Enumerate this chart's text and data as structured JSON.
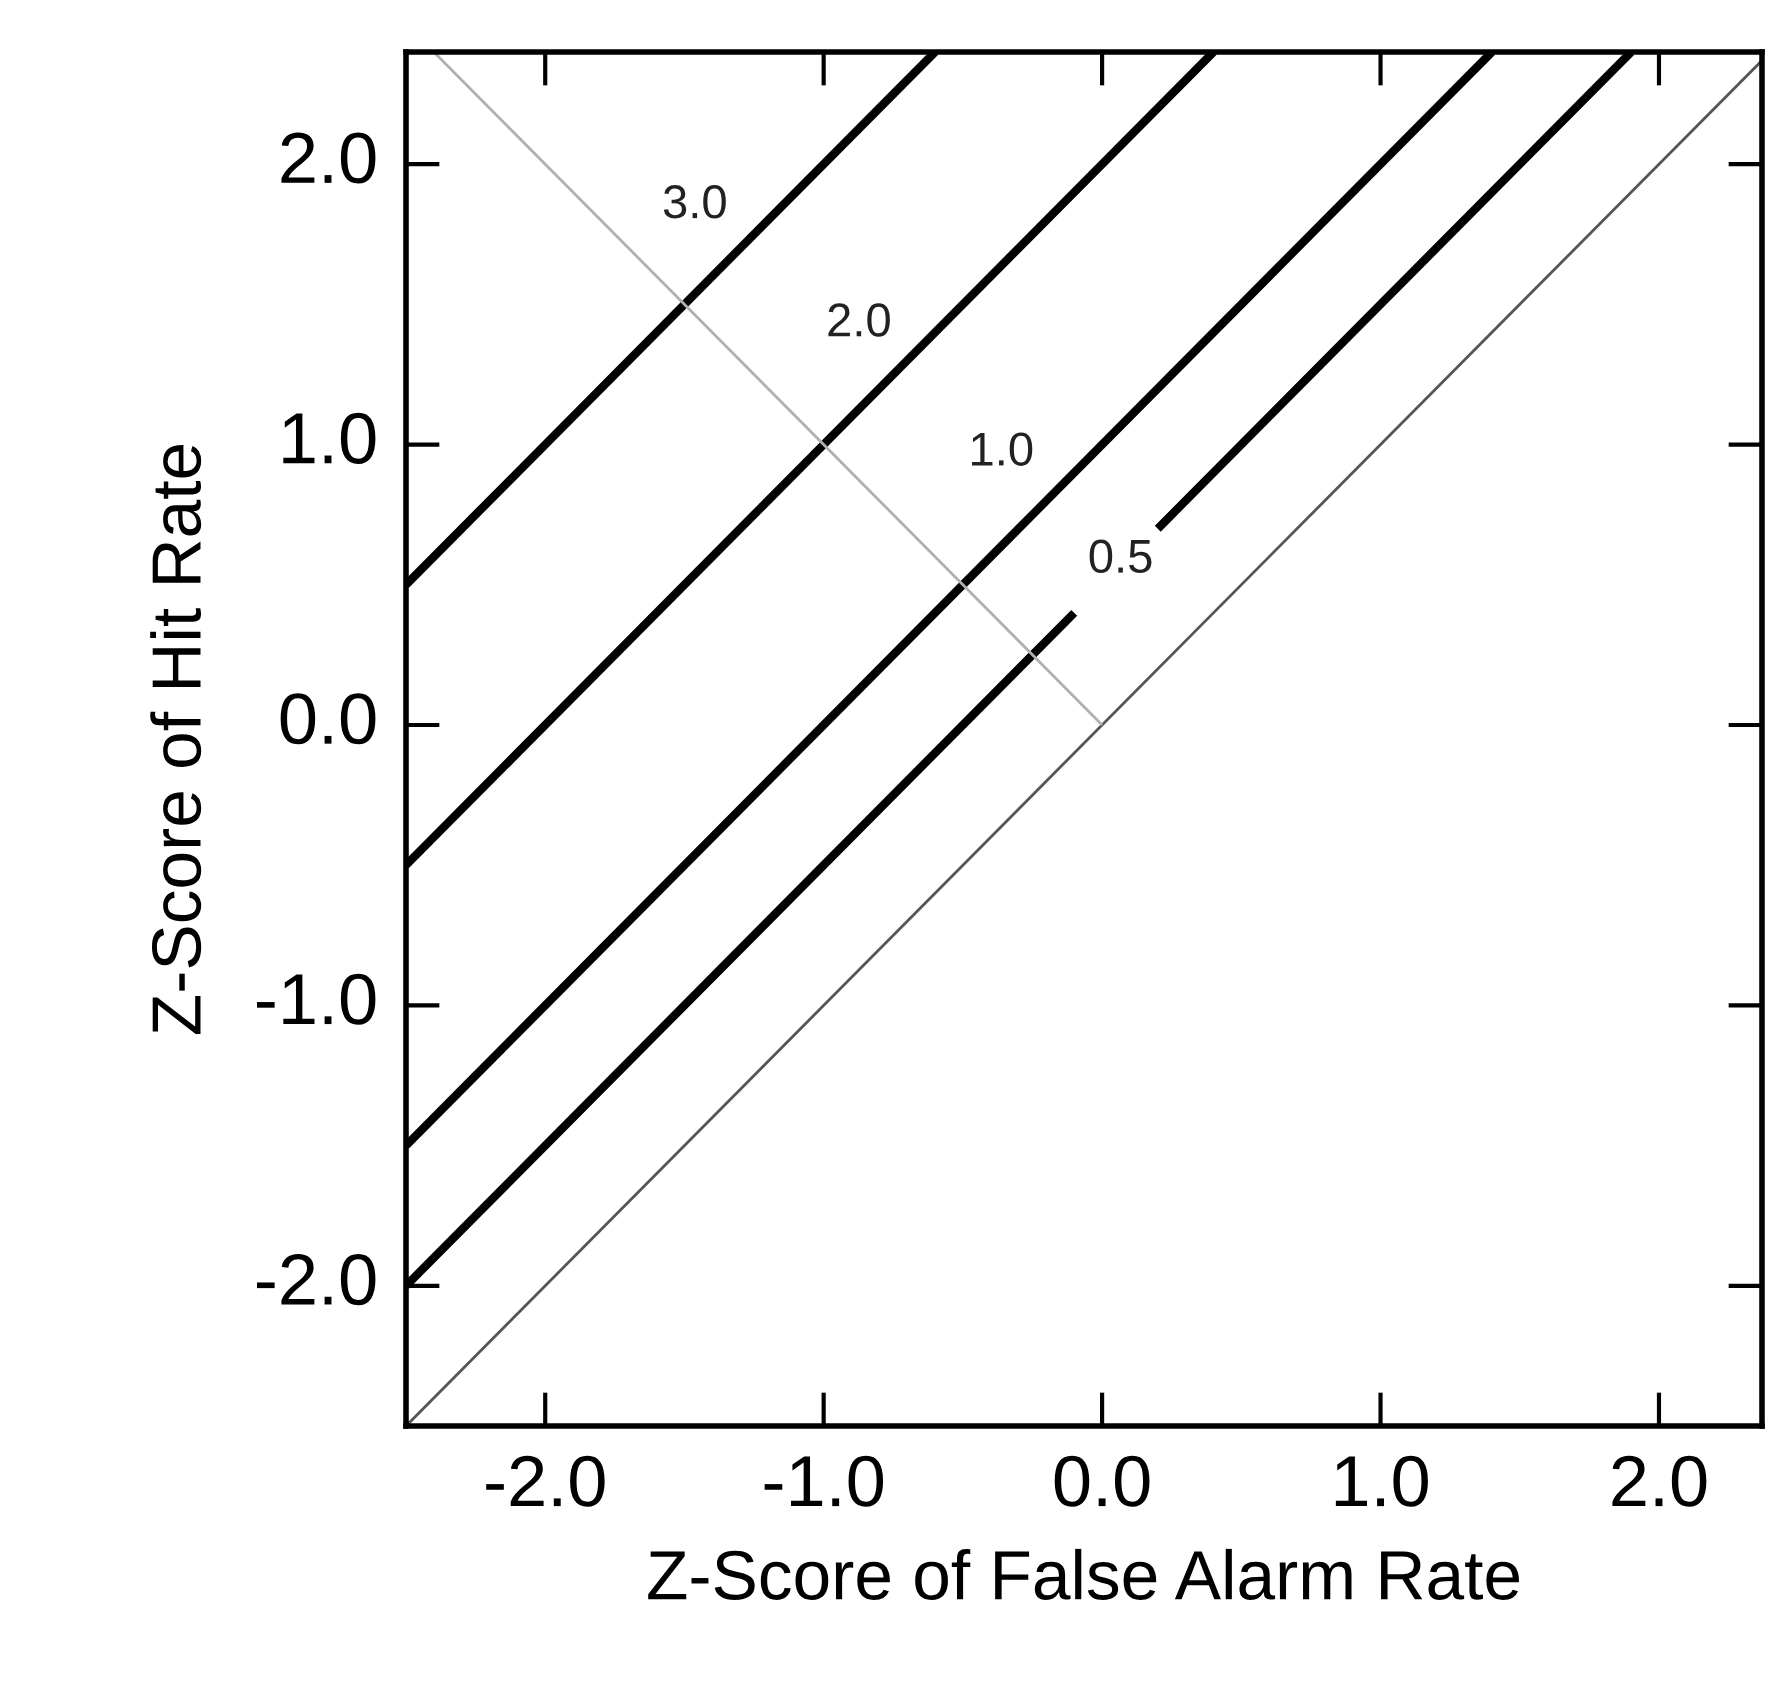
{
  "chart_data": {
    "type": "line",
    "xlabel": "Z-Score of False Alarm Rate",
    "ylabel": "Z-Score of Hit Rate",
    "series": [
      {
        "color": "#000000",
        "x": [
          -2.5,
          -0.6
        ],
        "values": [
          0.5,
          2.4
        ]
      },
      {
        "color": "#000000",
        "x": [
          -2.5,
          0.4
        ],
        "values": [
          -0.5,
          2.4
        ]
      },
      {
        "color": "#000000",
        "x": [
          -2.5,
          1.4
        ],
        "values": [
          -1.5,
          2.4
        ]
      },
      {
        "color": "#000000",
        "x": [
          -2.5,
          -0.1,
          0.05,
          0.2,
          1.9
        ],
        "values": [
          -2.0,
          0.4,
          null,
          0.7,
          2.4
        ]
      },
      {
        "color": "#555555",
        "x": [
          -2.5,
          2.37
        ],
        "values": [
          -2.5,
          2.37
        ]
      },
      {
        "color": "#b0b0b0",
        "x": [
          -2.4,
          0.0
        ],
        "values": [
          2.4,
          0.0
        ]
      }
    ],
    "annotations": [
      "3.0",
      "2.0",
      "1.0",
      "0.5"
    ],
    "xlim": [
      -2.5,
      2.37
    ],
    "ylim": [
      -2.5,
      2.4
    ],
    "xticks": [
      {
        "value": -2.0,
        "label": "-2.0"
      },
      {
        "value": -1.0,
        "label": "-1.0"
      },
      {
        "value": 0.0,
        "label": "0.0"
      },
      {
        "value": 1.0,
        "label": "1.0"
      },
      {
        "value": 2.0,
        "label": "2.0"
      }
    ],
    "yticks": [
      {
        "value": -2.0,
        "label": "-2.0"
      },
      {
        "value": -1.0,
        "label": "-1.0"
      },
      {
        "value": 0.0,
        "label": "0.0"
      },
      {
        "value": 1.0,
        "label": "1.0"
      },
      {
        "value": 2.0,
        "label": "2.0"
      }
    ],
    "grid": false,
    "legend": false
  }
}
